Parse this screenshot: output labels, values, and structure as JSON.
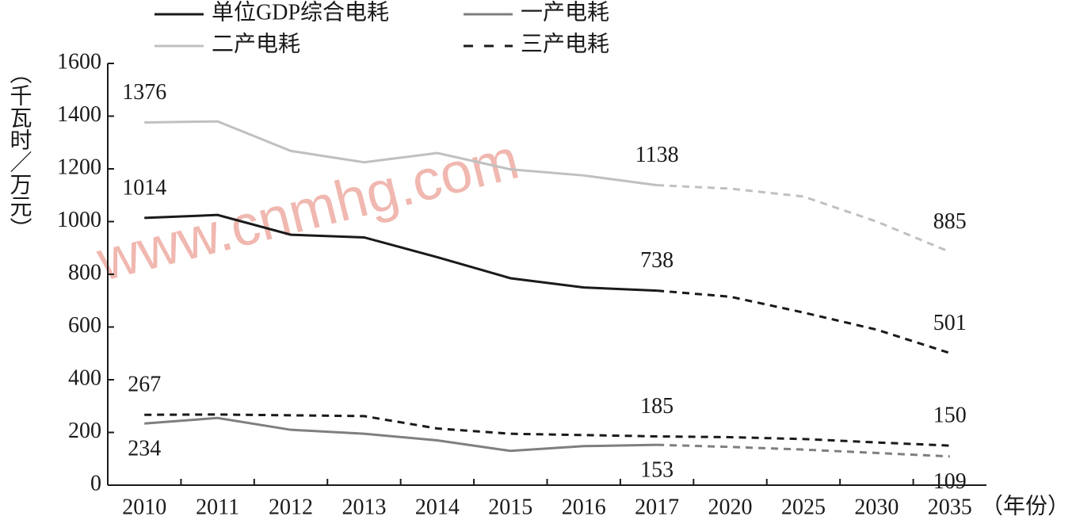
{
  "chart_data": {
    "type": "line",
    "y_label": "（千瓦时／万元）",
    "x_label": "（年份）",
    "watermark": "www.cnmhg.com",
    "categories": [
      "2010",
      "2011",
      "2012",
      "2013",
      "2014",
      "2015",
      "2016",
      "2017",
      "2020",
      "2025",
      "2030",
      "2035"
    ],
    "forecast_from_index": 7,
    "ylim": [
      0,
      1600
    ],
    "yticks": [
      0,
      200,
      400,
      600,
      800,
      1000,
      1200,
      1400,
      1600
    ],
    "series": [
      {
        "name": "单位GDP综合电耗",
        "color": "#1a1a1a",
        "dashed": false,
        "label_position": "above",
        "labeled": [
          0,
          7,
          11
        ],
        "values": [
          1014,
          1025,
          950,
          940,
          865,
          785,
          750,
          738,
          715,
          655,
          590,
          501
        ]
      },
      {
        "name": "一产电耗",
        "color": "#7f7f7f",
        "dashed": false,
        "label_position": "below",
        "labeled": [
          0,
          7,
          11
        ],
        "values": [
          234,
          255,
          210,
          195,
          170,
          130,
          148,
          153,
          145,
          135,
          122,
          109
        ]
      },
      {
        "name": "二产电耗",
        "color": "#c0c0c0",
        "dashed": false,
        "label_position": "above",
        "labeled": [
          0,
          7,
          11
        ],
        "values": [
          1376,
          1380,
          1268,
          1225,
          1260,
          1198,
          1175,
          1138,
          1125,
          1095,
          1000,
          885
        ]
      },
      {
        "name": "三产电耗",
        "color": "#1a1a1a",
        "dashed": true,
        "label_position": "above",
        "labeled": [
          0,
          7,
          11
        ],
        "values": [
          267,
          268,
          265,
          262,
          215,
          195,
          190,
          185,
          182,
          175,
          162,
          150
        ]
      }
    ]
  }
}
